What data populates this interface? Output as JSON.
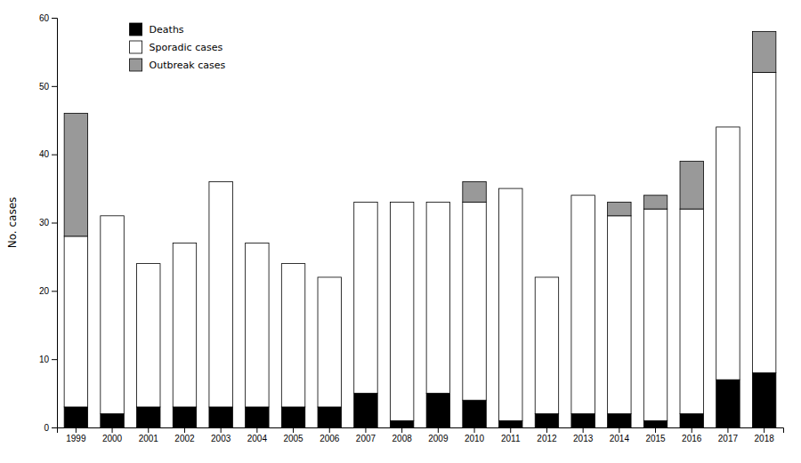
{
  "chart_data": {
    "type": "bar",
    "stacked": true,
    "categories": [
      "1999",
      "2000",
      "2001",
      "2002",
      "2003",
      "2004",
      "2005",
      "2006",
      "2007",
      "2008",
      "2009",
      "2010",
      "2011",
      "2012",
      "2013",
      "2014",
      "2015",
      "2016",
      "2017",
      "2018"
    ],
    "series": [
      {
        "name": "Deaths",
        "color": "#000000",
        "values": [
          3,
          2,
          3,
          3,
          3,
          3,
          3,
          3,
          5,
          1,
          5,
          4,
          1,
          2,
          2,
          2,
          1,
          2,
          7,
          8
        ]
      },
      {
        "name": "Sporadic cases",
        "color": "#ffffff",
        "values": [
          25,
          29,
          21,
          24,
          33,
          24,
          21,
          19,
          28,
          32,
          28,
          29,
          34,
          20,
          32,
          29,
          31,
          30,
          37,
          44
        ]
      },
      {
        "name": "Outbreak cases",
        "color": "#999999",
        "values": [
          18,
          0,
          0,
          0,
          0,
          0,
          0,
          0,
          0,
          0,
          0,
          3,
          0,
          0,
          0,
          2,
          2,
          7,
          0,
          6
        ]
      }
    ],
    "ylabel": "No. cases",
    "ylim": [
      0,
      60
    ],
    "yticks": [
      0,
      10,
      20,
      30,
      40,
      50,
      60
    ],
    "grid": false,
    "legend": "top-left"
  }
}
